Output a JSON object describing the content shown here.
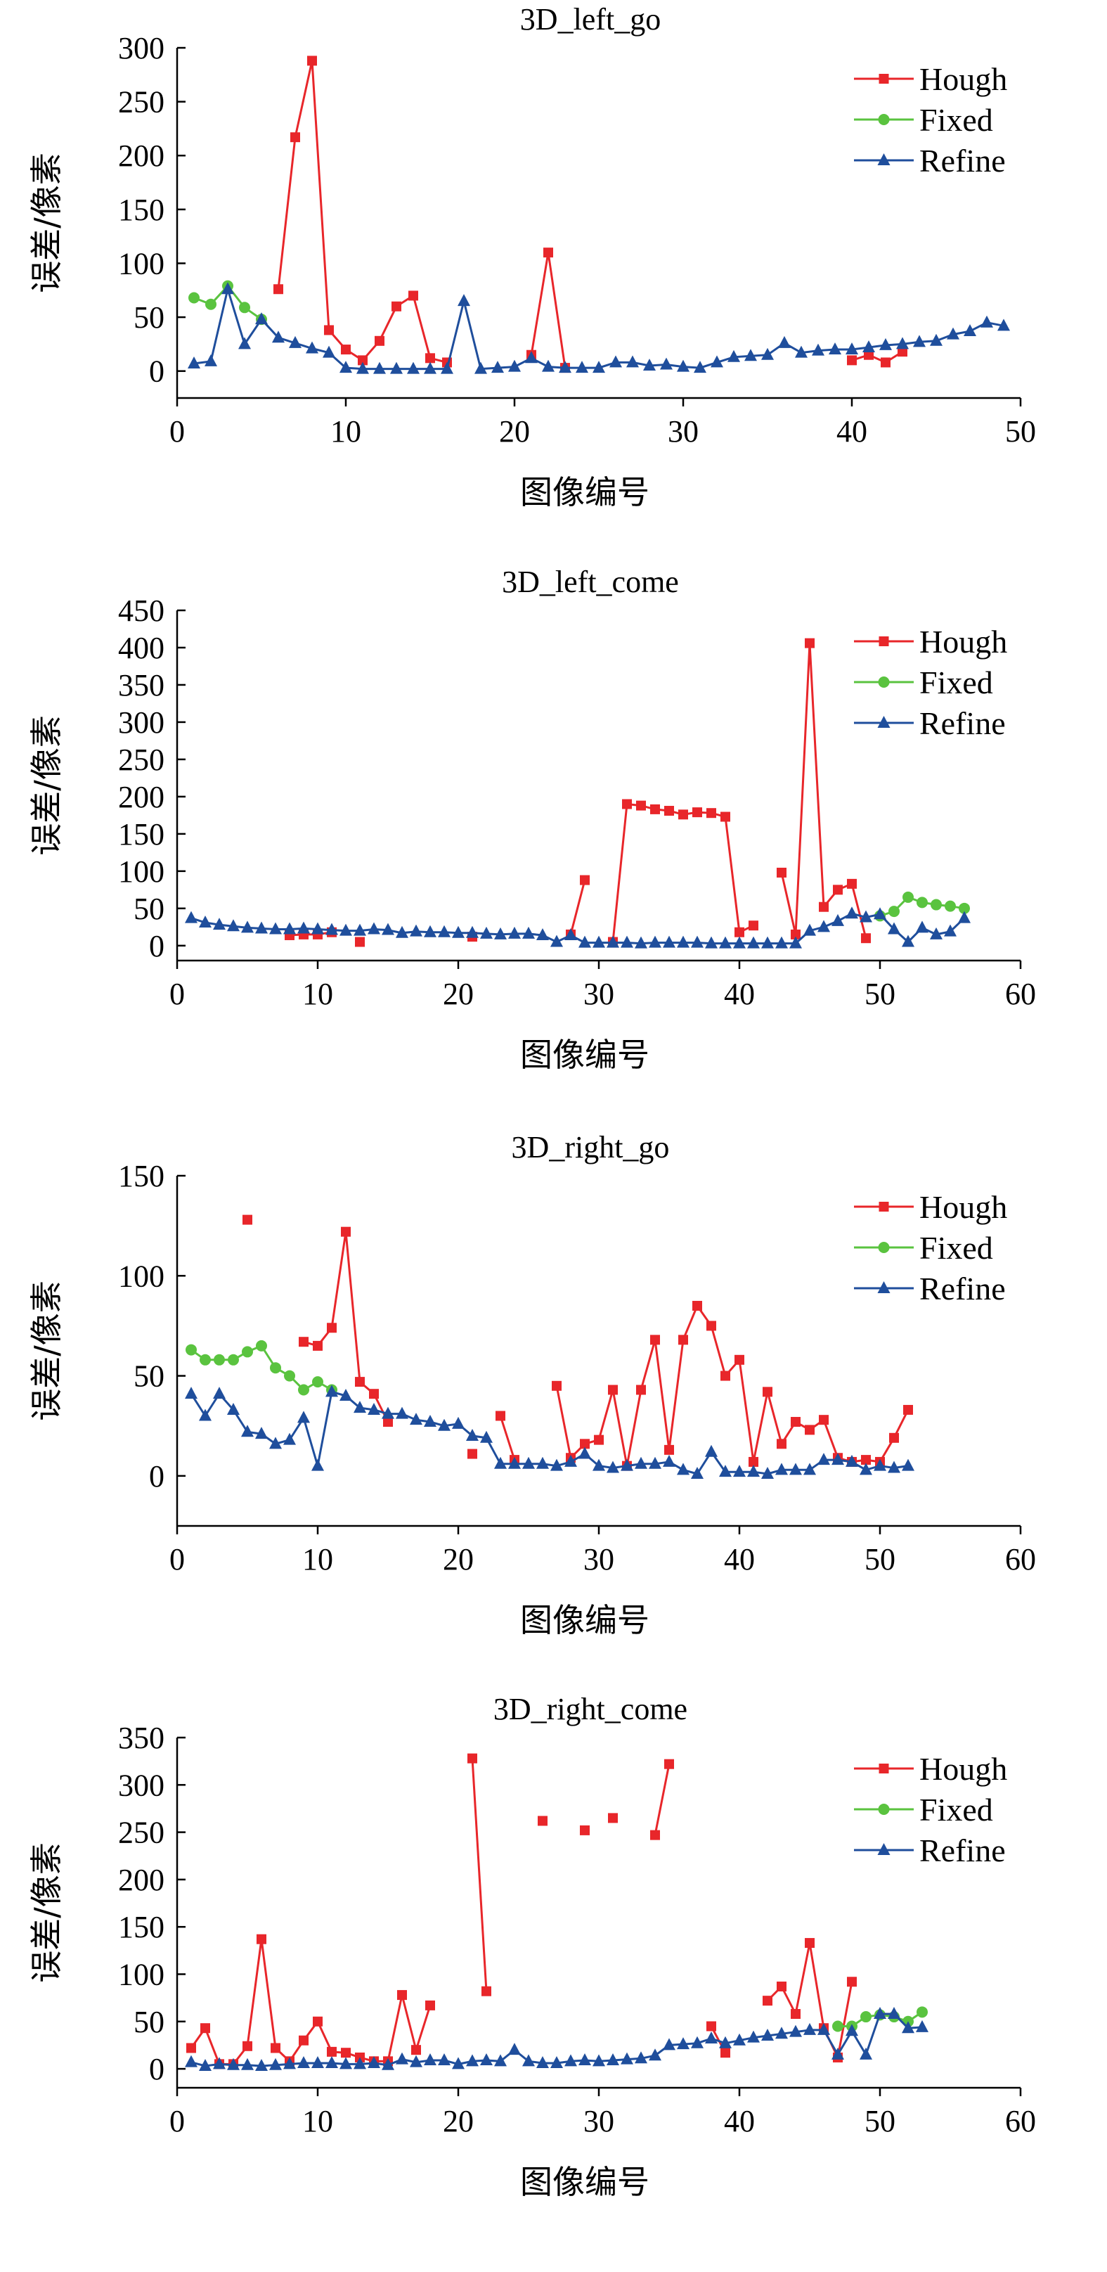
{
  "chart_data": [
    {
      "type": "line",
      "title": "3D_left_go",
      "xlabel": "图像编号",
      "ylabel": "误差/像素",
      "xlim": [
        0,
        50
      ],
      "ylim": [
        -25,
        300
      ],
      "xticks": [
        0,
        10,
        20,
        30,
        40,
        50
      ],
      "yticks": [
        0,
        50,
        100,
        150,
        200,
        250,
        300
      ],
      "grid": false,
      "legend": "top-right",
      "series": [
        {
          "name": "Hough",
          "color": "#e8262a",
          "marker": "square",
          "x": [
            6,
            7,
            8,
            9,
            10,
            11,
            12,
            13,
            14,
            15,
            16,
            null,
            21,
            22,
            23,
            null,
            40,
            41,
            42,
            43
          ],
          "y": [
            76,
            217,
            288,
            38,
            20,
            10,
            28,
            60,
            70,
            12,
            8,
            null,
            15,
            110,
            3,
            null,
            10,
            15,
            8,
            18
          ]
        },
        {
          "name": "Fixed",
          "color": "#5ac33f",
          "marker": "circle",
          "x": [
            1,
            2,
            3,
            4,
            5
          ],
          "y": [
            68,
            62,
            79,
            59,
            48
          ]
        },
        {
          "name": "Refine",
          "color": "#1f4e9c",
          "marker": "triangle",
          "x": [
            1,
            2,
            3,
            4,
            5,
            6,
            7,
            8,
            9,
            10,
            11,
            12,
            13,
            14,
            15,
            16,
            17,
            18,
            19,
            20,
            21,
            22,
            23,
            24,
            25,
            26,
            27,
            28,
            29,
            30,
            31,
            32,
            33,
            34,
            35,
            36,
            37,
            38,
            39,
            40,
            41,
            42,
            43,
            44,
            45,
            46,
            47,
            48,
            49
          ],
          "y": [
            7,
            9,
            76,
            25,
            48,
            31,
            26,
            21,
            17,
            3,
            2,
            2,
            2,
            2,
            2,
            2,
            65,
            2,
            3,
            4,
            12,
            4,
            3,
            3,
            3,
            8,
            8,
            5,
            6,
            4,
            3,
            8,
            13,
            14,
            15,
            26,
            17,
            19,
            20,
            20,
            22,
            24,
            25,
            27,
            28,
            34,
            37,
            45,
            42
          ]
        }
      ]
    },
    {
      "type": "line",
      "title": "3D_left_come",
      "xlabel": "图像编号",
      "ylabel": "误差/像素",
      "xlim": [
        0,
        60
      ],
      "ylim": [
        -20,
        450
      ],
      "xticks": [
        0,
        10,
        20,
        30,
        40,
        50,
        60
      ],
      "yticks": [
        0,
        50,
        100,
        150,
        200,
        250,
        300,
        350,
        400,
        450
      ],
      "grid": false,
      "legend": "top-right",
      "series": [
        {
          "name": "Hough",
          "color": "#e8262a",
          "marker": "square",
          "x": [
            8,
            9,
            10,
            11,
            null,
            13,
            null,
            21,
            null,
            28,
            29,
            null,
            31,
            32,
            33,
            34,
            35,
            36,
            37,
            38,
            39,
            40,
            41,
            null,
            43,
            44,
            45,
            46,
            47,
            48,
            49
          ],
          "y": [
            14,
            15,
            15,
            18,
            null,
            5,
            null,
            12,
            null,
            15,
            88,
            null,
            5,
            190,
            188,
            183,
            181,
            176,
            179,
            178,
            173,
            18,
            27,
            null,
            98,
            15,
            406,
            52,
            75,
            83,
            10
          ]
        },
        {
          "name": "Fixed",
          "color": "#5ac33f",
          "marker": "circle",
          "x": [
            50,
            51,
            52,
            53,
            54,
            55,
            56
          ],
          "y": [
            40,
            46,
            65,
            58,
            55,
            53,
            50
          ]
        },
        {
          "name": "Refine",
          "color": "#1f4e9c",
          "marker": "triangle",
          "x": [
            1,
            2,
            3,
            4,
            5,
            6,
            7,
            8,
            9,
            10,
            11,
            12,
            13,
            14,
            15,
            16,
            17,
            18,
            19,
            20,
            21,
            22,
            23,
            24,
            25,
            26,
            27,
            28,
            29,
            30,
            31,
            32,
            33,
            34,
            35,
            36,
            37,
            38,
            39,
            40,
            41,
            42,
            43,
            44,
            45,
            46,
            47,
            48,
            49,
            50,
            51,
            52,
            53,
            54,
            55,
            56
          ],
          "y": [
            37,
            31,
            28,
            26,
            24,
            23,
            22,
            22,
            23,
            22,
            21,
            20,
            20,
            22,
            21,
            17,
            19,
            18,
            18,
            17,
            17,
            16,
            15,
            16,
            16,
            14,
            5,
            14,
            4,
            4,
            4,
            4,
            3,
            4,
            4,
            4,
            4,
            3,
            3,
            3,
            3,
            3,
            3,
            3,
            20,
            25,
            33,
            43,
            38,
            42,
            22,
            5,
            24,
            15,
            19,
            37
          ]
        }
      ]
    },
    {
      "type": "line",
      "title": "3D_right_go",
      "xlabel": "图像编号",
      "ylabel": "误差/像素",
      "xlim": [
        0,
        60
      ],
      "ylim": [
        -25,
        150
      ],
      "xticks": [
        0,
        10,
        20,
        30,
        40,
        50,
        60
      ],
      "yticks": [
        0,
        50,
        100,
        150
      ],
      "grid": false,
      "legend": "top-right",
      "series": [
        {
          "name": "Hough",
          "color": "#e8262a",
          "marker": "square",
          "x": [
            5,
            null,
            9,
            10,
            11,
            12,
            13,
            14,
            15,
            null,
            21,
            null,
            23,
            24,
            null,
            27,
            28,
            29,
            30,
            31,
            32,
            33,
            34,
            35,
            36,
            37,
            38,
            39,
            40,
            41,
            42,
            43,
            44,
            45,
            46,
            47,
            48,
            49,
            50,
            51,
            52
          ],
          "y": [
            128,
            null,
            67,
            65,
            74,
            122,
            47,
            41,
            27,
            null,
            11,
            null,
            30,
            8,
            null,
            45,
            9,
            16,
            18,
            43,
            5,
            43,
            68,
            13,
            68,
            85,
            75,
            50,
            58,
            7,
            42,
            16,
            27,
            23,
            28,
            9,
            7,
            8,
            7,
            19,
            33
          ]
        },
        {
          "name": "Fixed",
          "color": "#5ac33f",
          "marker": "circle",
          "x": [
            1,
            2,
            3,
            4,
            5,
            6,
            7,
            8,
            9,
            10,
            11
          ],
          "y": [
            63,
            58,
            58,
            58,
            62,
            65,
            54,
            50,
            43,
            47,
            43
          ]
        },
        {
          "name": "Refine",
          "color": "#1f4e9c",
          "marker": "triangle",
          "x": [
            1,
            2,
            3,
            4,
            5,
            6,
            7,
            8,
            9,
            10,
            11,
            12,
            13,
            14,
            15,
            16,
            17,
            18,
            19,
            20,
            21,
            22,
            23,
            24,
            25,
            26,
            27,
            28,
            29,
            30,
            31,
            32,
            33,
            34,
            35,
            36,
            37,
            38,
            39,
            40,
            41,
            42,
            43,
            44,
            45,
            46,
            47,
            48,
            49,
            50,
            51,
            52
          ],
          "y": [
            41,
            30,
            41,
            33,
            22,
            21,
            16,
            18,
            29,
            5,
            42,
            40,
            34,
            33,
            31,
            31,
            28,
            27,
            25,
            26,
            20,
            19,
            6,
            6,
            6,
            6,
            5,
            7,
            11,
            5,
            4,
            5,
            6,
            6,
            7,
            3,
            1,
            12,
            2,
            2,
            2,
            1,
            3,
            3,
            3,
            8,
            8,
            7,
            3,
            5,
            4,
            5
          ]
        }
      ]
    },
    {
      "type": "line",
      "title": "3D_right_come",
      "xlabel": "图像编号",
      "ylabel": "误差/像素",
      "xlim": [
        0,
        60
      ],
      "ylim": [
        -20,
        350
      ],
      "xticks": [
        0,
        10,
        20,
        30,
        40,
        50,
        60
      ],
      "yticks": [
        0,
        50,
        100,
        150,
        200,
        250,
        300,
        350
      ],
      "grid": false,
      "legend": "top-right",
      "series": [
        {
          "name": "Hough",
          "color": "#e8262a",
          "marker": "square",
          "x": [
            1,
            2,
            3,
            4,
            5,
            6,
            7,
            8,
            9,
            10,
            11,
            12,
            13,
            14,
            15,
            16,
            17,
            18,
            null,
            21,
            22,
            null,
            26,
            null,
            29,
            null,
            31,
            null,
            34,
            35,
            null,
            38,
            39,
            null,
            42,
            43,
            44,
            45,
            46,
            47,
            48
          ],
          "y": [
            22,
            43,
            5,
            5,
            24,
            137,
            22,
            8,
            30,
            50,
            18,
            17,
            12,
            8,
            8,
            78,
            20,
            67,
            null,
            328,
            82,
            null,
            262,
            null,
            252,
            null,
            265,
            null,
            247,
            322,
            null,
            45,
            17,
            null,
            72,
            87,
            58,
            133,
            43,
            12,
            92
          ]
        },
        {
          "name": "Fixed",
          "color": "#5ac33f",
          "marker": "circle",
          "x": [
            47,
            48,
            49,
            50,
            51,
            52,
            53
          ],
          "y": [
            45,
            45,
            55,
            57,
            55,
            50,
            60
          ]
        },
        {
          "name": "Refine",
          "color": "#1f4e9c",
          "marker": "triangle",
          "x": [
            1,
            2,
            3,
            4,
            5,
            6,
            7,
            8,
            9,
            10,
            11,
            12,
            13,
            14,
            15,
            16,
            17,
            18,
            19,
            20,
            21,
            22,
            23,
            24,
            25,
            26,
            27,
            28,
            29,
            30,
            31,
            32,
            33,
            34,
            35,
            36,
            37,
            38,
            39,
            40,
            41,
            42,
            43,
            44,
            45,
            46,
            47,
            48,
            49,
            50,
            51,
            52,
            53
          ],
          "y": [
            7,
            3,
            5,
            4,
            4,
            3,
            4,
            5,
            6,
            6,
            6,
            5,
            5,
            6,
            4,
            10,
            7,
            9,
            9,
            5,
            8,
            9,
            8,
            20,
            8,
            6,
            6,
            8,
            9,
            8,
            9,
            10,
            11,
            14,
            25,
            26,
            27,
            32,
            27,
            30,
            33,
            35,
            37,
            39,
            41,
            41,
            15,
            40,
            15,
            58,
            58,
            43,
            44
          ]
        }
      ]
    }
  ]
}
